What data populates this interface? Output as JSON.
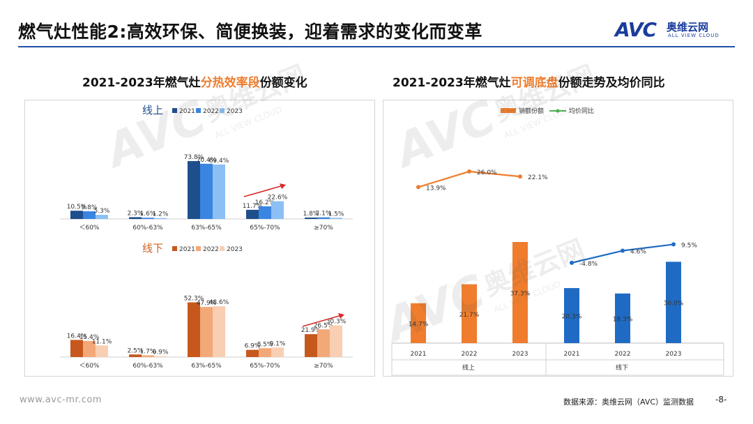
{
  "page": {
    "title": "燃气灶性能2:高效环保、简便换装，迎着需求的变化而变革",
    "logo_mark": "AVC",
    "logo_cn": "奥维云网",
    "logo_en": "ALL VIEW CLOUD",
    "left_subtitle": {
      "pre": "2021-2023年燃气灶",
      "hl": "分热效率段",
      "post": "份额变化"
    },
    "right_subtitle": {
      "pre": "2021-2023年燃气灶",
      "hl": "可调底盘",
      "post": "份额走势及均价同比"
    },
    "footer_url": "www.avc-mr.com",
    "footer_source": "数据来源：奥维云网（AVC）监测数据",
    "page_number": "-8-",
    "watermark": {
      "mark": "AVC",
      "cn": "奥维云网",
      "en": "ALL VIEW CLOUD"
    }
  },
  "colors": {
    "brand": "#1a3d9c",
    "accent": "#ef7d2d",
    "online": [
      "#1f4e8c",
      "#3a85e0",
      "#8cc0f5"
    ],
    "offline": [
      "#c6581e",
      "#f3a878",
      "#f8cfb2"
    ],
    "bar_orange": "#ef7d2d",
    "bar_blue": "#1f6bc4",
    "line_orange": "#ef7d2d",
    "line_blue": "#1f6bc4",
    "trend_arrow": "#d62a2a"
  },
  "chart_data": [
    {
      "type": "bar",
      "title": "线上",
      "categories": [
        "＜60%",
        "60%-63%",
        "63%-65%",
        "65%-70%",
        "≥70%"
      ],
      "series": [
        {
          "name": "2021",
          "values": [
            10.5,
            2.3,
            73.8,
            11.7,
            1.8
          ],
          "labels": [
            "10.5%",
            "2.3%",
            "73.8%",
            "11.7%",
            "1.8%"
          ]
        },
        {
          "name": "2022",
          "values": [
            9.8,
            1.6,
            70.4,
            16.2,
            2.1
          ],
          "labels": [
            "9.8%",
            "1.6%",
            "70.4%",
            "16.2%",
            "2.1%"
          ]
        },
        {
          "name": "2023",
          "values": [
            5.3,
            1.2,
            69.4,
            22.6,
            1.5
          ],
          "labels": [
            "5.3%",
            "1.2%",
            "69.4%",
            "22.6%",
            "1.5%"
          ]
        }
      ],
      "ylim": [
        0,
        80
      ]
    },
    {
      "type": "bar",
      "title": "线下",
      "categories": [
        "＜60%",
        "60%-63%",
        "63%-65%",
        "65%-70%",
        "≥70%"
      ],
      "series": [
        {
          "name": "2021",
          "values": [
            16.4,
            2.5,
            52.3,
            6.9,
            21.9
          ],
          "labels": [
            "16.4%",
            "2.5%",
            "52.3%",
            "6.9%",
            "21.9%"
          ]
        },
        {
          "name": "2022",
          "values": [
            15.4,
            1.7,
            47.9,
            8.5,
            26.5
          ],
          "labels": [
            "15.4%",
            "1.7%",
            "47.9%",
            "8.5%",
            "26.5%"
          ]
        },
        {
          "name": "2023",
          "values": [
            11.1,
            0.9,
            48.6,
            9.1,
            30.3
          ],
          "labels": [
            "11.1%",
            "0.9%",
            "48.6%",
            "9.1%",
            "30.3%"
          ]
        }
      ],
      "ylim": [
        0,
        60
      ]
    },
    {
      "type": "bar+line",
      "legend": [
        "销额份额",
        "均价同比"
      ],
      "groups": [
        {
          "name": "线上",
          "x": [
            "2021",
            "2022",
            "2023"
          ],
          "share": [
            14.7,
            21.7,
            37.3
          ],
          "share_labels": [
            "14.7%",
            "21.7%",
            "37.3%"
          ],
          "yoy": [
            13.9,
            26.0,
            22.1
          ],
          "yoy_labels": [
            "13.9%",
            "26.0%",
            "22.1%"
          ]
        },
        {
          "name": "线下",
          "x": [
            "2021",
            "2022",
            "2023"
          ],
          "share": [
            20.3,
            18.3,
            30.0
          ],
          "share_labels": [
            "20.3%",
            "18.3%",
            "30.0%"
          ],
          "yoy": [
            -4.8,
            4.6,
            9.5
          ],
          "yoy_labels": [
            "-4.8%",
            "4.6%",
            "9.5%"
          ]
        }
      ]
    }
  ]
}
